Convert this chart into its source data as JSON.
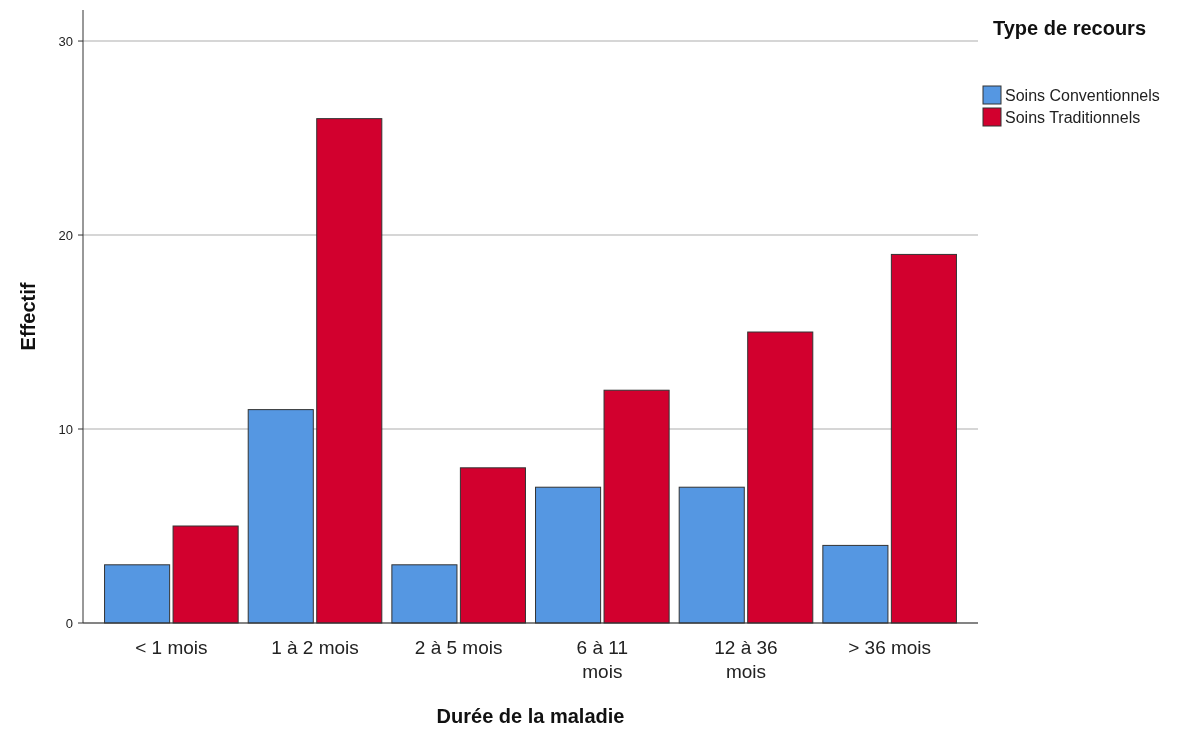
{
  "chart_data": {
    "type": "bar",
    "xlabel": "Durée de la maladie",
    "ylabel": "Effectif",
    "legend_title": "Type de recours",
    "categories": [
      "< 1 mois",
      "1 à 2 mois",
      "2 à 5 mois",
      "6 à 11 mois",
      "12 à 36 mois",
      "> 36 mois"
    ],
    "series": [
      {
        "name": "Soins Conventionnels",
        "color": "#5597e2",
        "values": [
          3,
          11,
          3,
          7,
          7,
          4
        ]
      },
      {
        "name": "Soins Traditionnels",
        "color": "#d2002e",
        "values": [
          5,
          26,
          8,
          12,
          15,
          19
        ]
      }
    ],
    "ylim": [
      0,
      31.6
    ],
    "yticks": [
      0,
      10,
      20,
      30
    ],
    "grid": "y",
    "legend": "top right"
  }
}
